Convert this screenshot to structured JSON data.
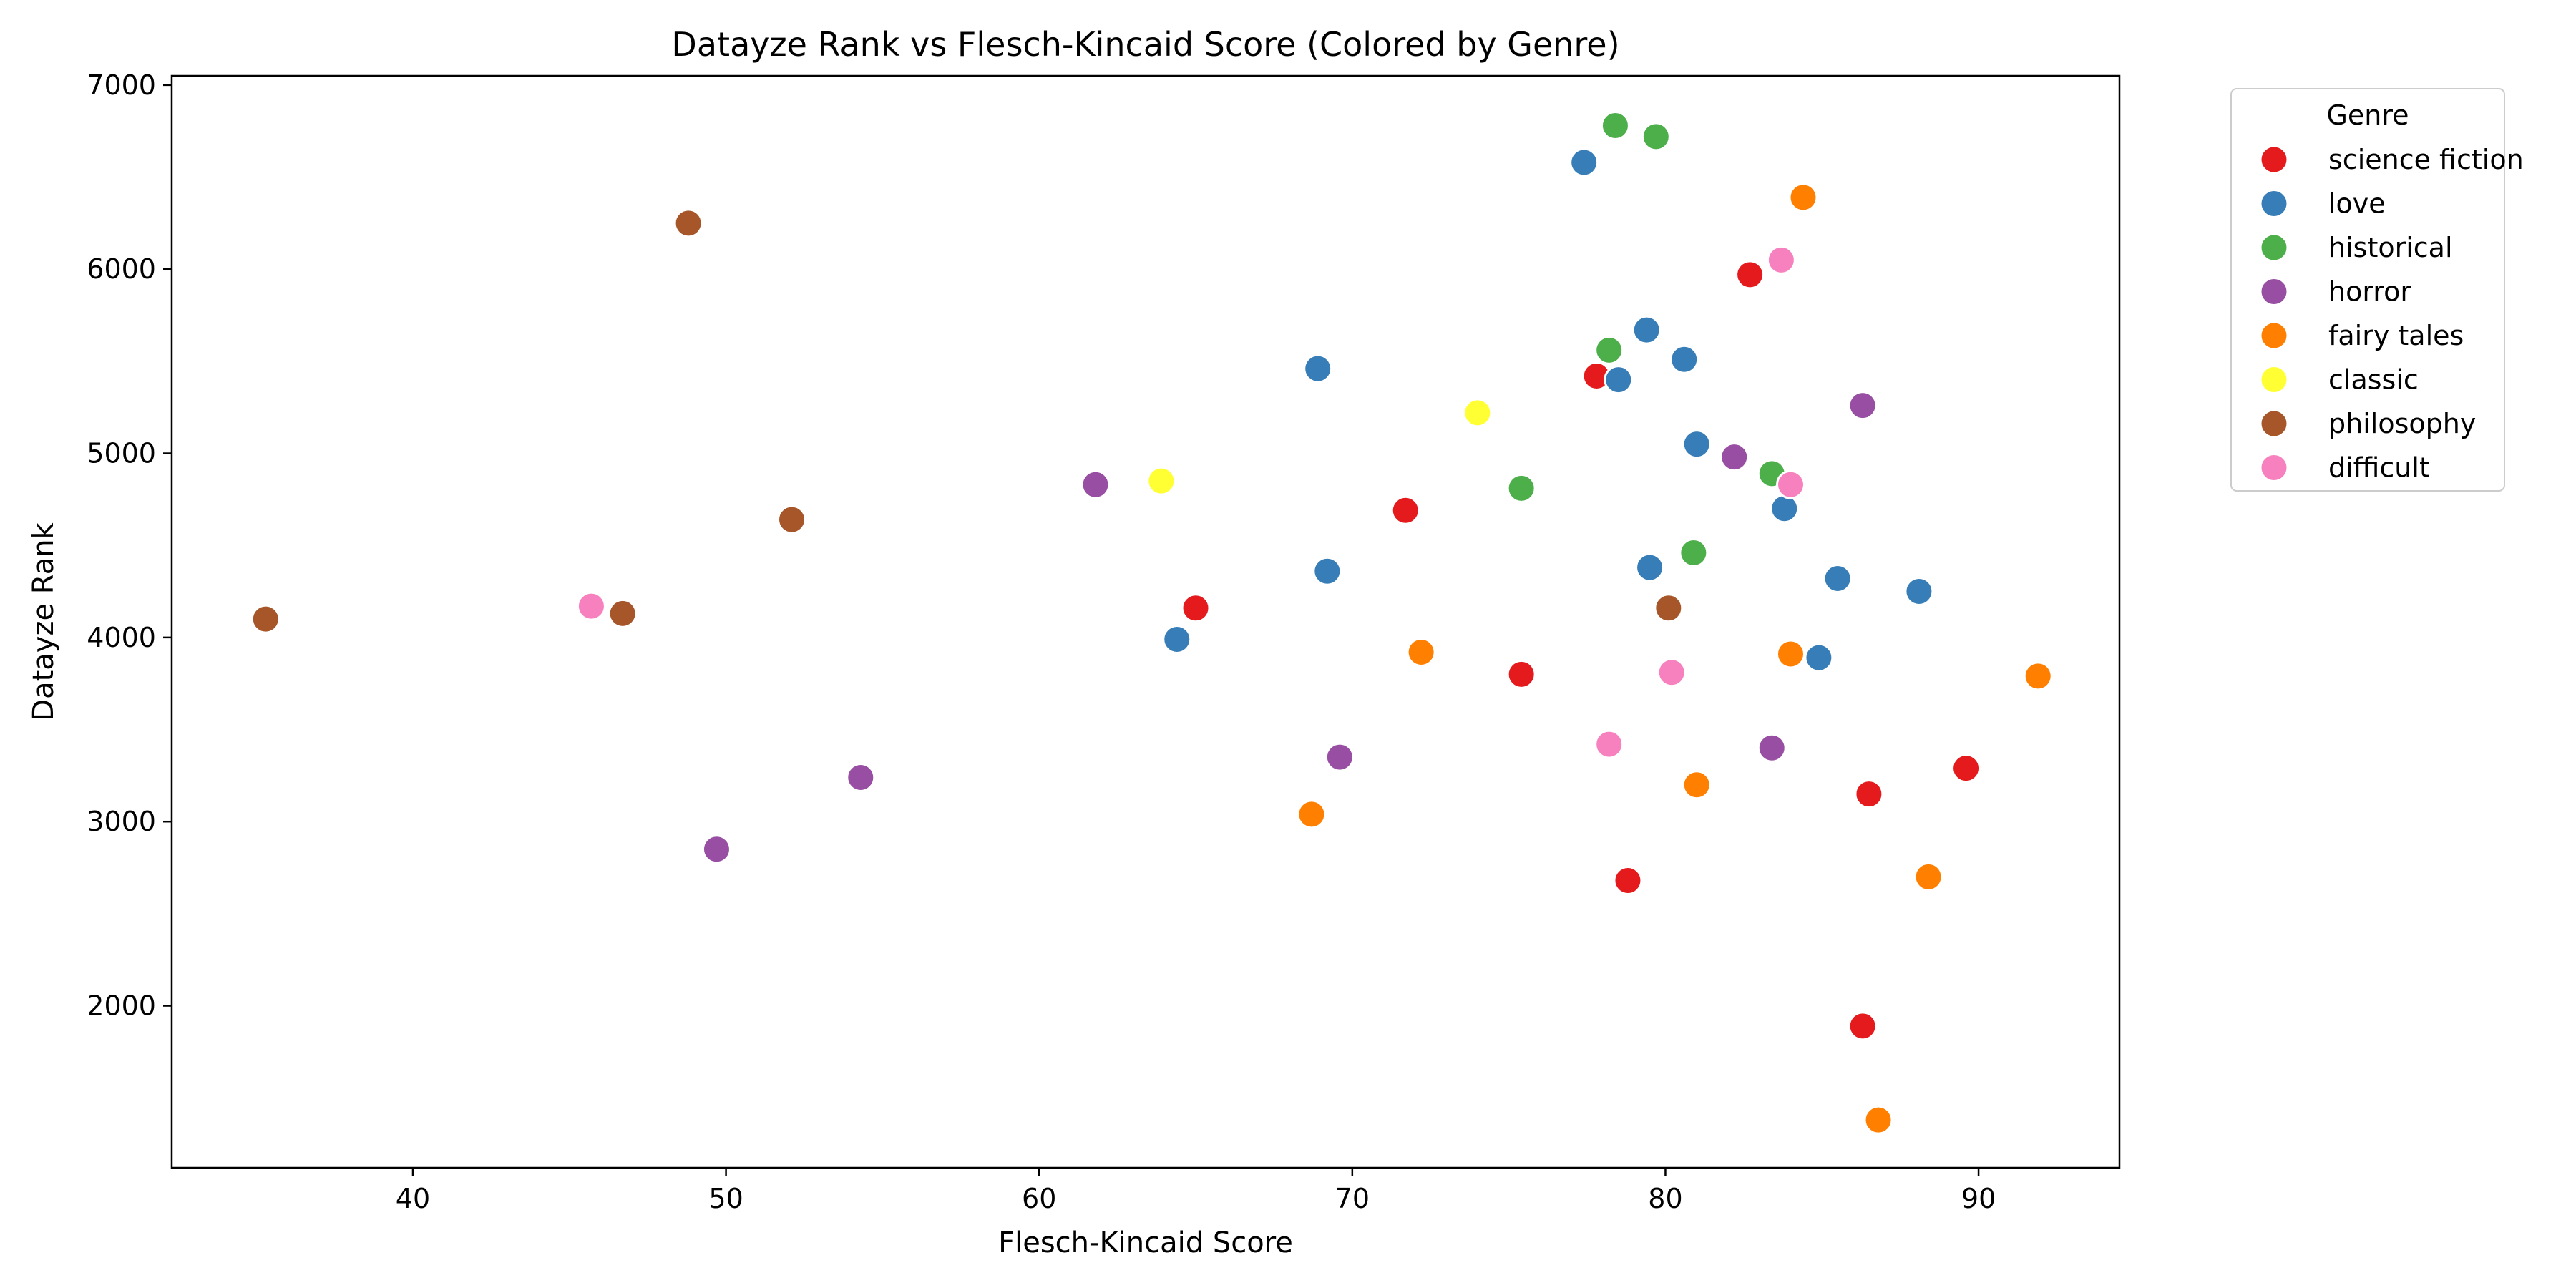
{
  "chart_data": {
    "type": "scatter",
    "title": "Datayze Rank vs Flesch-Kincaid Score (Colored by Genre)",
    "xlabel": "Flesch-Kincaid Score",
    "ylabel": "Datayze Rank",
    "xlim": [
      32.3,
      94.5
    ],
    "ylim": [
      1120,
      7050
    ],
    "xticks": [
      40,
      50,
      60,
      70,
      80,
      90
    ],
    "yticks": [
      2000,
      3000,
      4000,
      5000,
      6000,
      7000
    ],
    "grid": false,
    "legend": {
      "title": "Genre",
      "placement": "outside-top-right"
    },
    "series": [
      {
        "name": "science fiction",
        "color": "#e41a1c",
        "points": [
          [
            77.8,
            5420
          ],
          [
            82.7,
            5970
          ],
          [
            71.7,
            4690
          ],
          [
            65.0,
            4160
          ],
          [
            75.4,
            3800
          ],
          [
            78.8,
            2680
          ],
          [
            86.5,
            3150
          ],
          [
            89.6,
            3290
          ],
          [
            86.3,
            1890
          ]
        ]
      },
      {
        "name": "love",
        "color": "#377eb8",
        "points": [
          [
            77.4,
            6580
          ],
          [
            79.4,
            5670
          ],
          [
            80.6,
            5510
          ],
          [
            78.5,
            5400
          ],
          [
            68.9,
            5460
          ],
          [
            81.0,
            5050
          ],
          [
            83.8,
            4700
          ],
          [
            79.5,
            4380
          ],
          [
            69.2,
            4360
          ],
          [
            85.5,
            4320
          ],
          [
            88.1,
            4250
          ],
          [
            64.4,
            3990
          ],
          [
            84.9,
            3890
          ]
        ]
      },
      {
        "name": "historical",
        "color": "#4daf4a",
        "points": [
          [
            78.4,
            6780
          ],
          [
            79.7,
            6720
          ],
          [
            78.2,
            5560
          ],
          [
            75.4,
            4810
          ],
          [
            83.4,
            4890
          ],
          [
            80.9,
            4460
          ]
        ]
      },
      {
        "name": "horror",
        "color": "#984ea3",
        "points": [
          [
            61.8,
            4830
          ],
          [
            86.3,
            5260
          ],
          [
            82.2,
            4980
          ],
          [
            69.6,
            3350
          ],
          [
            83.4,
            3400
          ],
          [
            54.3,
            3240
          ],
          [
            49.7,
            2850
          ]
        ]
      },
      {
        "name": "fairy tales",
        "color": "#ff7f00",
        "points": [
          [
            84.4,
            6390
          ],
          [
            72.2,
            3920
          ],
          [
            84.0,
            3910
          ],
          [
            91.9,
            3790
          ],
          [
            81.0,
            3200
          ],
          [
            68.7,
            3040
          ],
          [
            88.4,
            2700
          ],
          [
            86.8,
            1380
          ]
        ]
      },
      {
        "name": "classic",
        "color": "#ffff33",
        "points": [
          [
            74.0,
            5220
          ],
          [
            63.9,
            4850
          ]
        ]
      },
      {
        "name": "philosophy",
        "color": "#a65628",
        "points": [
          [
            48.8,
            6250
          ],
          [
            52.1,
            4640
          ],
          [
            35.3,
            4100
          ],
          [
            46.7,
            4130
          ],
          [
            80.1,
            4160
          ]
        ]
      },
      {
        "name": "difficult",
        "color": "#f781bf",
        "points": [
          [
            83.7,
            6050
          ],
          [
            84.0,
            4830
          ],
          [
            45.7,
            4170
          ],
          [
            80.2,
            3810
          ],
          [
            78.2,
            3420
          ]
        ]
      }
    ]
  }
}
